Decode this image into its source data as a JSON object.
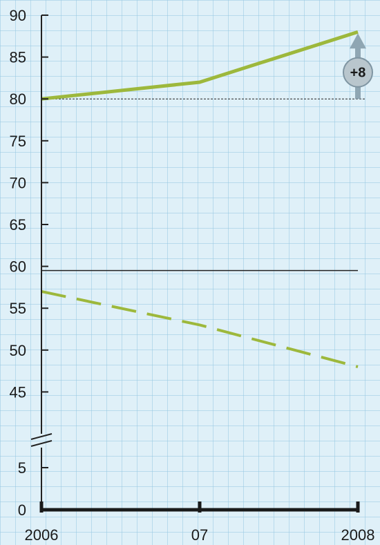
{
  "chart_data": {
    "type": "line",
    "x": [
      "2006",
      "07",
      "2008"
    ],
    "yticks_upper": [
      90,
      85,
      80,
      75,
      70,
      65,
      60,
      55,
      50,
      45
    ],
    "yticks_lower": [
      5,
      0
    ],
    "axis_break": true,
    "grid": true,
    "series": [
      {
        "style": "solid",
        "color": "#9db83c",
        "values": [
          80,
          82,
          88
        ]
      },
      {
        "style": "dashed",
        "color": "#9db83c",
        "values": [
          57,
          53,
          48
        ]
      }
    ],
    "reference_lines": [
      {
        "value": 80,
        "style": "dotted"
      },
      {
        "value": 59.5,
        "style": "solid"
      }
    ],
    "annotation": {
      "text": "+8",
      "from": 80,
      "to": 88,
      "at_x": "2008",
      "color": "#8fa6b3"
    }
  }
}
